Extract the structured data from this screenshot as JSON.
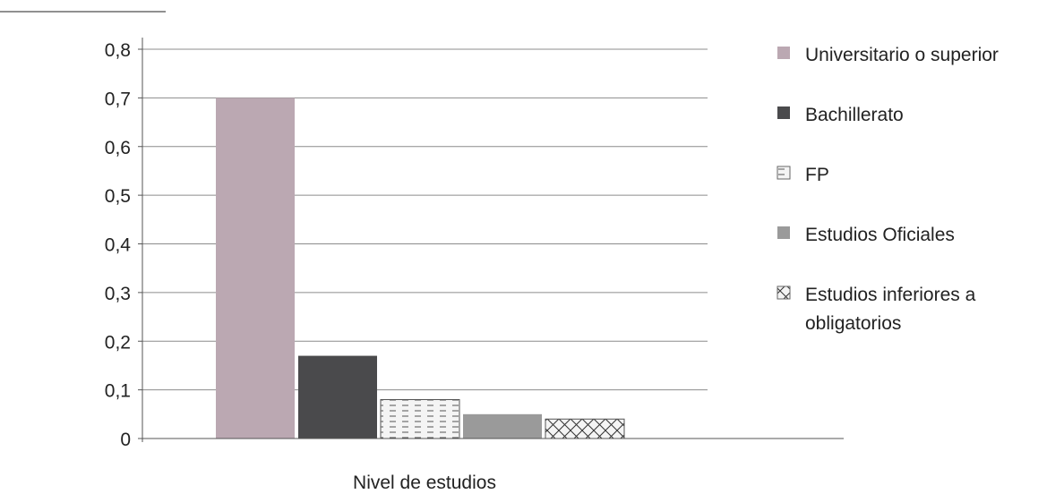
{
  "chart_data": {
    "type": "bar",
    "xlabel": "Nivel de estudios",
    "ylabel": "",
    "ylim": [
      0,
      0.8
    ],
    "yticks": [
      "0",
      "0,1",
      "0,2",
      "0,3",
      "0,4",
      "0,5",
      "0,6",
      "0,7",
      "0,8"
    ],
    "grid": true,
    "legend_position": "right",
    "series": [
      {
        "name": "Universitario o superior",
        "values": [
          0.7
        ],
        "color": "#bba8b2",
        "pattern": "solid"
      },
      {
        "name": "Bachillerato",
        "values": [
          0.17
        ],
        "color": "#4a4a4c",
        "pattern": "solid"
      },
      {
        "name": "FP",
        "values": [
          0.08
        ],
        "color": "#8a8a8a",
        "pattern": "dashes"
      },
      {
        "name": "Estudios Oficiales",
        "values": [
          0.05
        ],
        "color": "#9a9a9a",
        "pattern": "solid"
      },
      {
        "name": "Estudios inferiores a obligatorios",
        "values": [
          0.04
        ],
        "color": "#444444",
        "pattern": "crosshatch"
      }
    ]
  }
}
